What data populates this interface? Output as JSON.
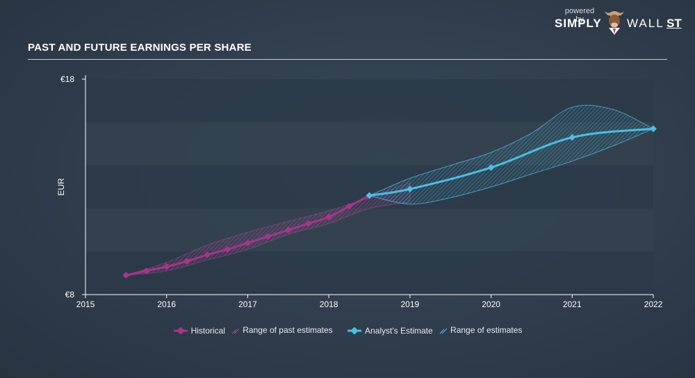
{
  "header": {
    "title": "PAST AND FUTURE EARNINGS PER SHARE",
    "powered_by": "powered by",
    "brand_simply": "SIMPLY",
    "brand_wall": "WALL",
    "brand_st": "ST"
  },
  "colors": {
    "historical": "#a8348c",
    "historical_range": "#c04aa0",
    "estimate": "#4bbfe6",
    "estimate_range": "#4bbfe6",
    "band_dark": "#2c3a48",
    "band_light": "#34424f"
  },
  "legend": {
    "historical": "Historical",
    "past_range": "Range of past estimates",
    "estimate": "Analyst's Estimate",
    "estimate_range": "Range of estimates"
  },
  "chart_data": {
    "type": "line",
    "title": "PAST AND FUTURE EARNINGS PER SHARE",
    "ylabel": "EUR",
    "xlabel": "",
    "ylim": [
      8,
      18
    ],
    "xlim": [
      2015,
      2022
    ],
    "y_tick_labels": [
      "€8",
      "€18"
    ],
    "x_tick_labels": [
      "2015",
      "2016",
      "2017",
      "2018",
      "2019",
      "2020",
      "2021",
      "2022"
    ],
    "series": [
      {
        "name": "Historical",
        "x": [
          2015.5,
          2015.75,
          2016.0,
          2016.25,
          2016.5,
          2016.75,
          2017.0,
          2017.25,
          2017.5,
          2017.75,
          2018.0,
          2018.25,
          2018.5
        ],
        "values": [
          8.9,
          9.1,
          9.3,
          9.55,
          9.85,
          10.1,
          10.4,
          10.7,
          11.0,
          11.3,
          11.6,
          12.1,
          12.6
        ]
      },
      {
        "name": "Range of past estimates",
        "x": [
          2015.5,
          2016.0,
          2016.5,
          2017.0,
          2017.5,
          2018.0,
          2018.5,
          2019.0
        ],
        "upper": [
          8.9,
          9.5,
          10.3,
          10.9,
          11.4,
          11.9,
          12.5,
          13.2
        ],
        "lower": [
          8.9,
          9.1,
          9.6,
          10.1,
          10.8,
          11.3,
          12.0,
          12.3
        ]
      },
      {
        "name": "Analyst's Estimate",
        "x": [
          2018.5,
          2019.0,
          2020.0,
          2021.0,
          2022.0
        ],
        "values": [
          12.6,
          12.9,
          13.9,
          15.3,
          15.7
        ]
      },
      {
        "name": "Range of estimates",
        "x": [
          2018.5,
          2019.0,
          2019.5,
          2020.0,
          2020.5,
          2021.0,
          2021.5,
          2022.0
        ],
        "upper": [
          12.6,
          13.4,
          14.0,
          14.6,
          15.5,
          16.7,
          16.6,
          15.7
        ],
        "lower": [
          12.6,
          12.2,
          12.5,
          13.0,
          13.6,
          14.2,
          14.9,
          15.7
        ]
      }
    ]
  }
}
